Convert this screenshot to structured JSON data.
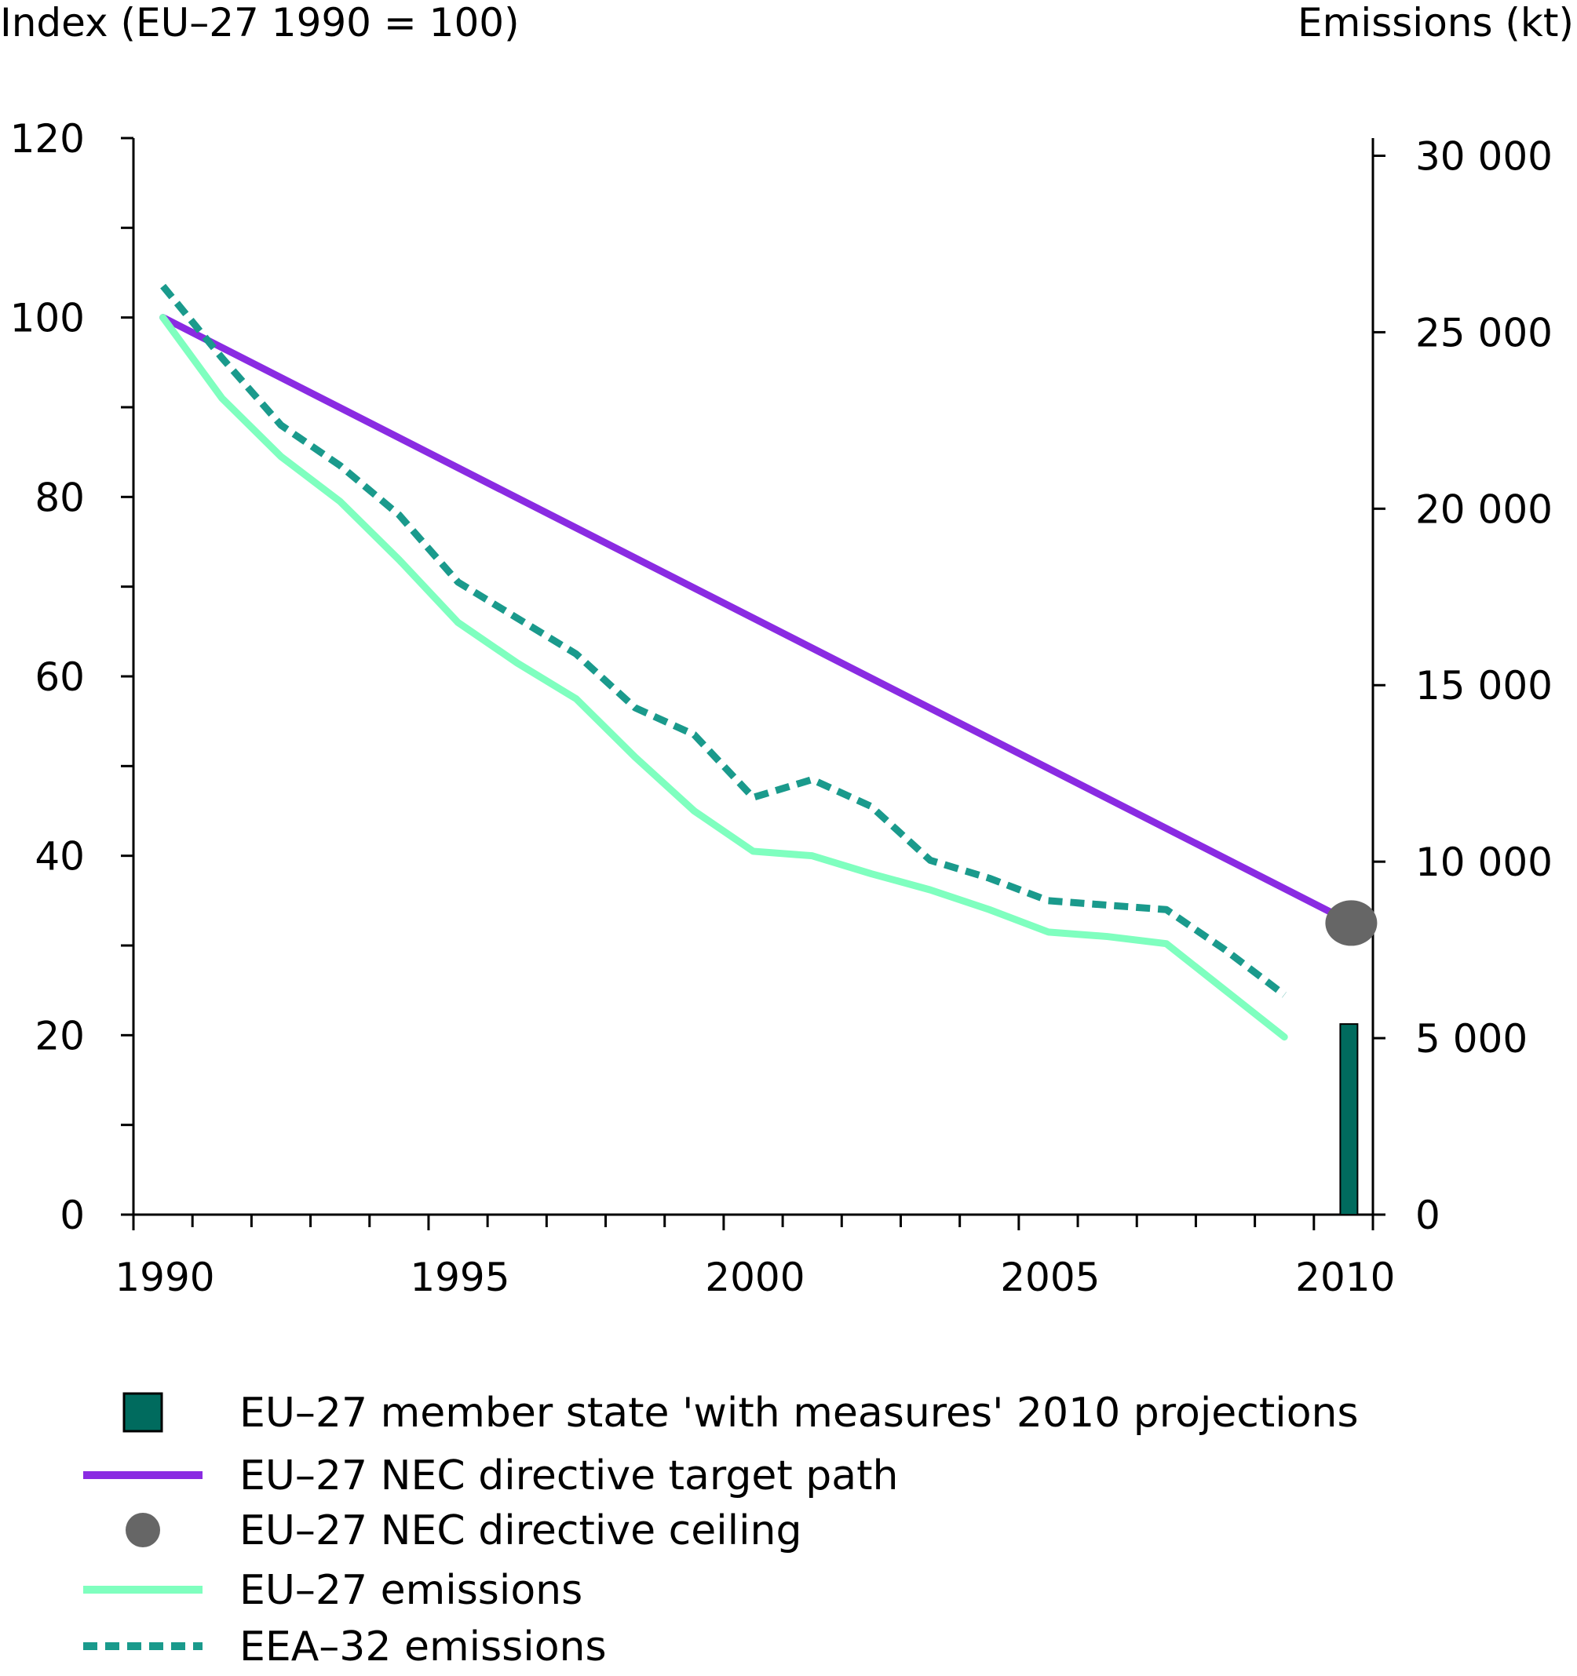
{
  "chart_data": {
    "type": "line",
    "left_axis_title": "Index (EU–27 1990 = 100)",
    "right_axis_title": "Emissions (kt)",
    "left_axis": {
      "ylim": [
        0,
        120
      ],
      "ticks": [
        0,
        20,
        40,
        60,
        80,
        100,
        120
      ],
      "tick_labels": [
        "0",
        "20",
        "40",
        "60",
        "80",
        "100",
        "120"
      ]
    },
    "right_axis": {
      "ylim": [
        0,
        30500
      ],
      "ticks": [
        0,
        5000,
        10000,
        15000,
        20000,
        25000,
        30000
      ],
      "tick_labels": [
        "0",
        "5 000",
        "10 000",
        "15 000",
        "20 000",
        "25 000",
        "30 000"
      ]
    },
    "x_axis": {
      "xlim": [
        1989.5,
        2010.5
      ],
      "ticks": [
        1990,
        1995,
        2000,
        2005,
        2010
      ],
      "tick_labels": [
        "1990",
        "1995",
        "2000",
        "2005",
        "2010"
      ]
    },
    "series": [
      {
        "name": "EU–27 NEC directive target path",
        "axis": "left",
        "color": "#8a2be2",
        "style": "solid",
        "x": [
          1990,
          2010
        ],
        "values": [
          100,
          33
        ]
      },
      {
        "name": "EU–27 emissions",
        "axis": "left",
        "color": "#7fffbf",
        "style": "solid",
        "x": [
          1990,
          1991,
          1992,
          1993,
          1994,
          1995,
          1996,
          1997,
          1998,
          1999,
          2000,
          2001,
          2002,
          2003,
          2004,
          2005,
          2006,
          2007,
          2008,
          2009
        ],
        "values": [
          100,
          91,
          84.5,
          79.5,
          73,
          66,
          61.5,
          57.5,
          51,
          45,
          40.5,
          40,
          38,
          36.2,
          34,
          31.5,
          31,
          30.2,
          25,
          19.8
        ]
      },
      {
        "name": "EEA–32 emissions",
        "axis": "left",
        "color": "#1a9a8c",
        "style": "dashed",
        "x": [
          1990,
          1991,
          1992,
          1993,
          1994,
          1995,
          1996,
          1997,
          1998,
          1999,
          2000,
          2001,
          2002,
          2003,
          2004,
          2005,
          2006,
          2007,
          2008,
          2009
        ],
        "values": [
          103.5,
          95.5,
          88,
          83.5,
          78,
          70.5,
          66.5,
          62.5,
          56.5,
          53.5,
          46.5,
          48.5,
          45.5,
          39.5,
          37.5,
          35,
          34.5,
          34,
          29.5,
          24.5
        ]
      }
    ],
    "nec_ceiling": {
      "name": "EU–27 NEC directive ceiling",
      "axis": "left",
      "x": 2010,
      "value": 32.5,
      "color": "#666666"
    },
    "projection_bar": {
      "name": "EU–27 member state 'with measures' 2010 projections",
      "axis": "right",
      "x": 2010,
      "value": 5400,
      "color": "#006b5e"
    },
    "legend": {
      "placement": "bottom",
      "entries": [
        {
          "label": "EU–27 member state 'with measures' 2010 projections",
          "symbol": "bar"
        },
        {
          "label": "EU–27 NEC directive target path",
          "symbol": "line"
        },
        {
          "label": "EU–27 NEC directive ceiling",
          "symbol": "dot"
        },
        {
          "label": "EU–27 emissions",
          "symbol": "line"
        },
        {
          "label": "EEA–32 emissions",
          "symbol": "dashed"
        }
      ]
    }
  }
}
